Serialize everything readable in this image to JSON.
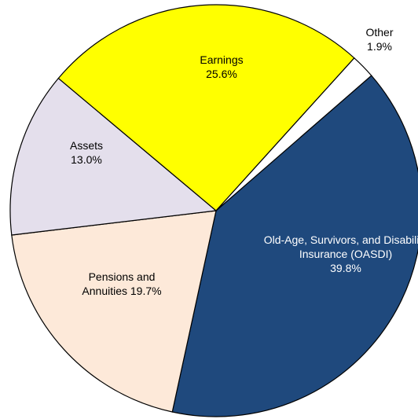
{
  "chart_data": {
    "type": "pie",
    "categories": [
      "Old-Age, Survivors, and Disability Insurance (OASDI)",
      "Pensions and Annuities",
      "Assets",
      "Earnings",
      "Other"
    ],
    "values": [
      39.8,
      19.7,
      13.0,
      25.6,
      1.9
    ],
    "value_labels": [
      "39.8%",
      "19.7%",
      "13.0%",
      "25.6%",
      "1.9%"
    ],
    "colors": [
      "#1f497d",
      "#fde9d9",
      "#e4dfec",
      "#ffff00",
      "#ffffff"
    ]
  }
}
